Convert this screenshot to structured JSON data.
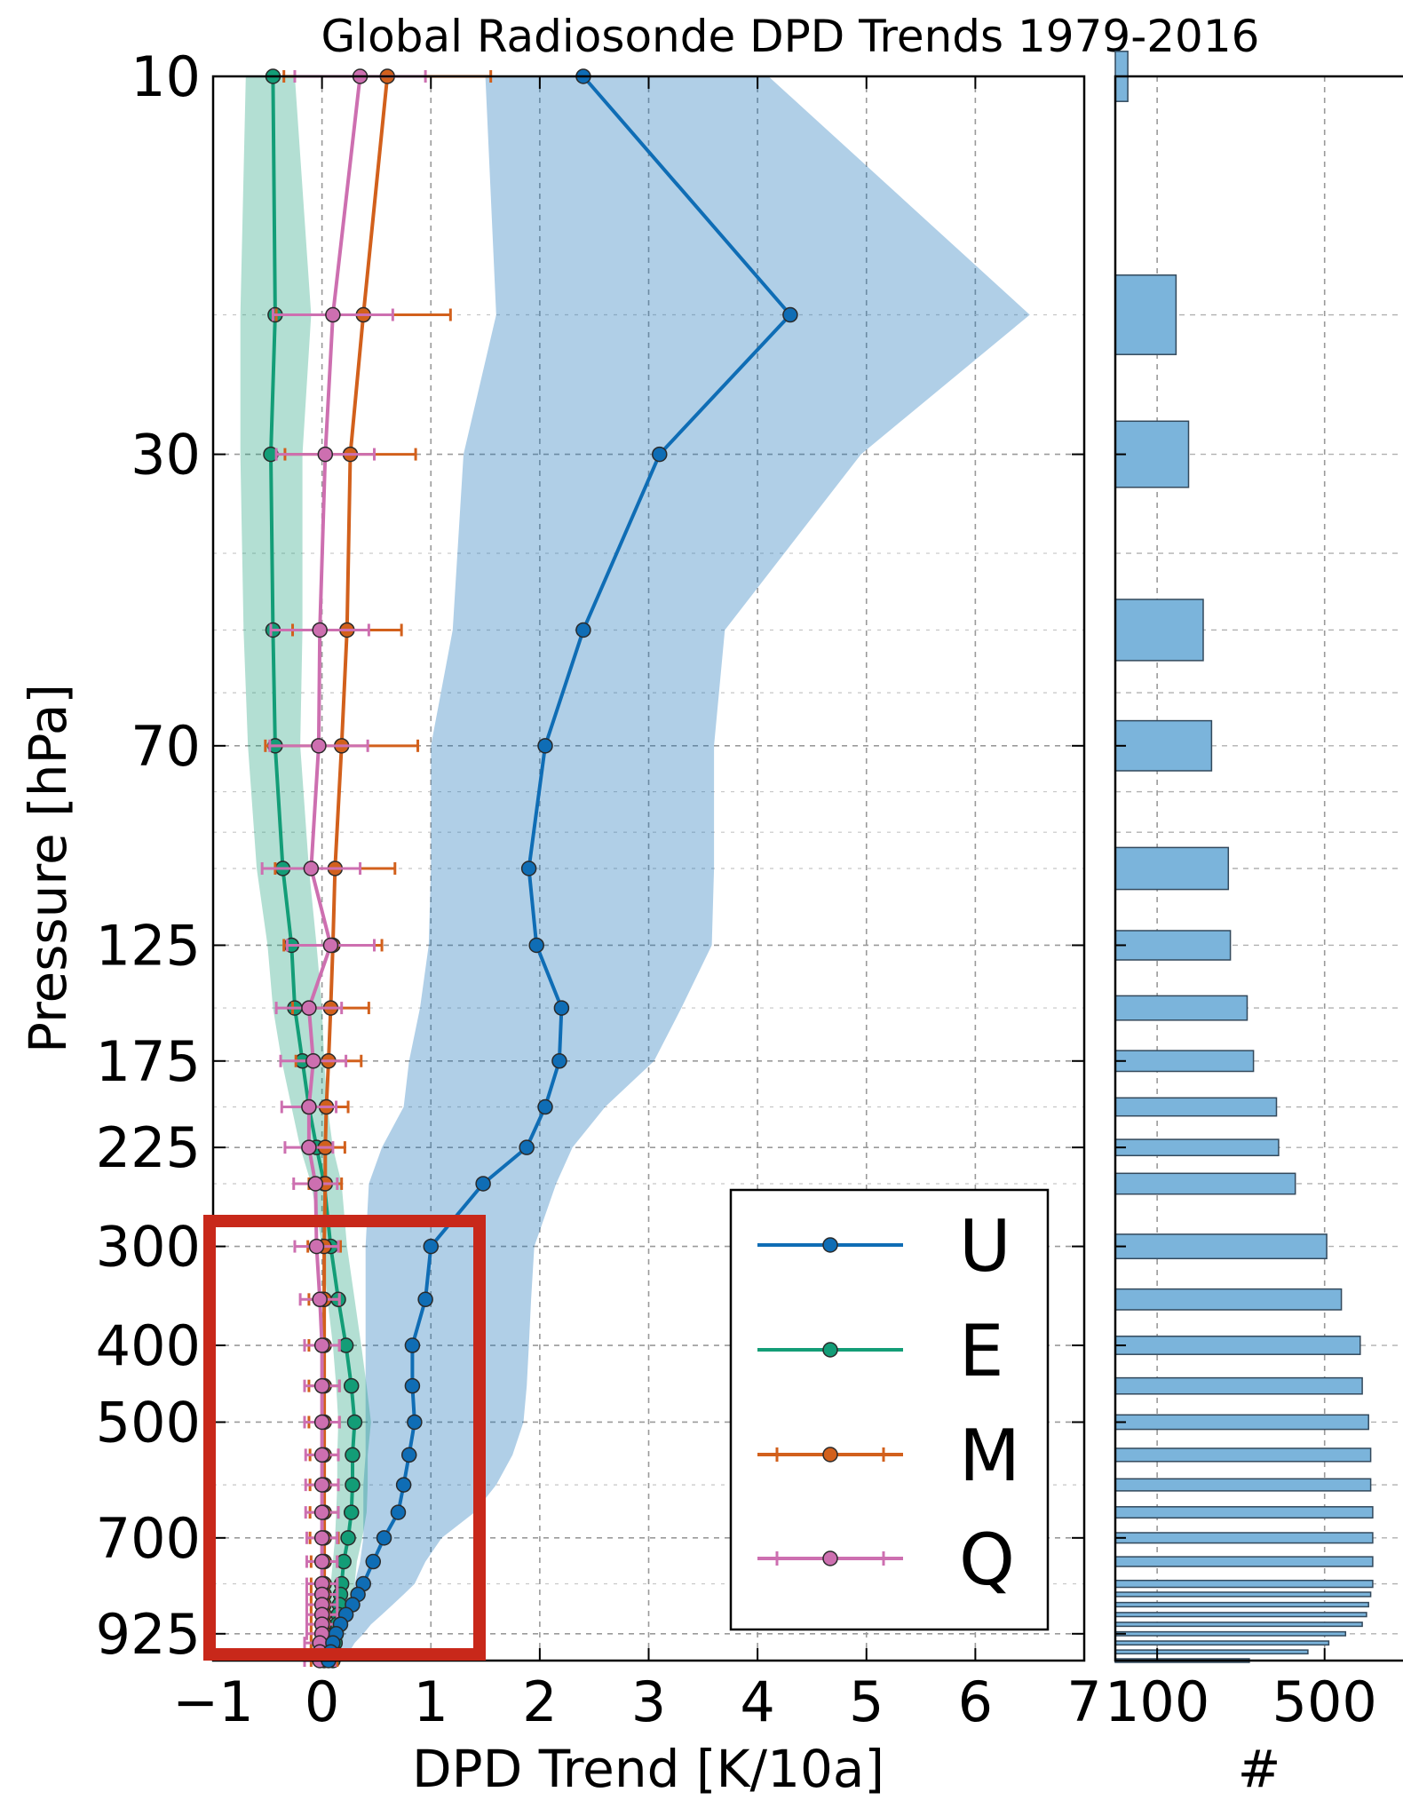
{
  "chart_data": [
    {
      "type": "line",
      "title": "Global Radiosonde DPD Trends 1979-2016",
      "xlabel": "DPD Trend [K/10a]",
      "ylabel": "Pressure [hPa]",
      "xlim": [
        -1,
        7
      ],
      "ylim": [
        1000,
        10
      ],
      "y_scale": "log",
      "grid": true,
      "legend_position": "lower-right",
      "x_ticks": [
        -1,
        0,
        1,
        2,
        3,
        4,
        5,
        6,
        7
      ],
      "y_ticks": [
        10,
        30,
        70,
        125,
        175,
        225,
        300,
        400,
        500,
        700,
        925
      ],
      "pressure_levels": [
        10,
        20,
        30,
        50,
        70,
        100,
        125,
        150,
        175,
        200,
        225,
        250,
        300,
        350,
        400,
        450,
        500,
        550,
        600,
        650,
        700,
        750,
        800,
        825,
        850,
        875,
        900,
        925,
        950,
        975,
        1000
      ],
      "series": [
        {
          "name": "U",
          "color": "#0f6db5",
          "marker": "circle",
          "values": [
            2.4,
            4.3,
            3.1,
            2.4,
            2.05,
            1.9,
            1.97,
            2.2,
            2.18,
            2.05,
            1.88,
            1.48,
            1.0,
            0.95,
            0.83,
            0.83,
            0.85,
            0.8,
            0.75,
            0.7,
            0.57,
            0.47,
            0.38,
            0.33,
            0.28,
            0.22,
            0.17,
            0.13,
            0.1,
            0.08,
            0.06
          ],
          "band_low": [
            1.5,
            1.6,
            1.3,
            1.2,
            1.0,
            1.0,
            0.98,
            0.9,
            0.8,
            0.75,
            0.55,
            0.43,
            0.4,
            0.4,
            0.4,
            0.4,
            0.4,
            0.4,
            0.38,
            0.38,
            0.38,
            0.35,
            0.3,
            0.27,
            0.24,
            0.2,
            0.16,
            0.12,
            0.09,
            0.07,
            0.05
          ],
          "band_high": [
            4.1,
            6.5,
            4.95,
            3.7,
            3.6,
            3.6,
            3.58,
            3.3,
            3.05,
            2.6,
            2.3,
            2.15,
            1.95,
            1.92,
            1.9,
            1.88,
            1.85,
            1.75,
            1.6,
            1.4,
            1.1,
            0.95,
            0.85,
            0.75,
            0.65,
            0.55,
            0.45,
            0.38,
            0.3,
            0.25,
            0.2
          ]
        },
        {
          "name": "E",
          "color": "#139d77",
          "marker": "circle",
          "values": [
            -0.45,
            -0.43,
            -0.47,
            -0.45,
            -0.43,
            -0.36,
            -0.28,
            -0.25,
            -0.18,
            -0.12,
            -0.05,
            0.02,
            0.08,
            0.15,
            0.22,
            0.27,
            0.3,
            0.28,
            0.28,
            0.27,
            0.24,
            0.2,
            0.18,
            0.17,
            0.16,
            0.15,
            0.14,
            0.13,
            0.12,
            0.11,
            0.1
          ],
          "band_low": [
            -0.7,
            -0.75,
            -0.75,
            -0.72,
            -0.68,
            -0.6,
            -0.5,
            -0.45,
            -0.37,
            -0.28,
            -0.2,
            -0.1,
            0.0,
            0.05,
            0.1,
            0.13,
            0.15,
            0.14,
            0.14,
            0.13,
            0.12,
            0.1,
            0.08,
            0.07,
            0.06,
            0.05,
            0.05,
            0.05,
            0.04,
            0.04,
            0.03
          ],
          "band_high": [
            -0.25,
            -0.1,
            -0.18,
            -0.18,
            -0.2,
            -0.12,
            -0.05,
            0.0,
            0.02,
            0.05,
            0.1,
            0.18,
            0.23,
            0.3,
            0.36,
            0.41,
            0.45,
            0.42,
            0.42,
            0.41,
            0.37,
            0.32,
            0.3,
            0.28,
            0.26,
            0.24,
            0.22,
            0.2,
            0.19,
            0.17,
            0.16
          ]
        },
        {
          "name": "M",
          "color": "#d2601c",
          "marker": "circle",
          "values": [
            0.6,
            0.38,
            0.26,
            0.23,
            0.18,
            0.12,
            0.1,
            0.08,
            0.06,
            0.04,
            0.03,
            0.03,
            0.02,
            0.02,
            0.02,
            0.02,
            0.02,
            0.02,
            0.02,
            0.02,
            0.02,
            0.02,
            0.02,
            0.02,
            0.02,
            0.02,
            0.02,
            0.02,
            0.02,
            0.02,
            0.02
          ],
          "err": [
            0.95,
            0.8,
            0.6,
            0.5,
            0.7,
            0.55,
            0.45,
            0.35,
            0.3,
            0.2,
            0.18,
            0.15,
            0.15,
            0.14,
            0.14,
            0.14,
            0.14,
            0.13,
            0.13,
            0.13,
            0.13,
            0.12,
            0.12,
            0.12,
            0.12,
            0.12,
            0.12,
            0.12,
            0.12,
            0.12,
            0.12
          ]
        },
        {
          "name": "Q",
          "color": "#cd6fb0",
          "marker": "circle",
          "values": [
            0.35,
            0.1,
            0.03,
            -0.02,
            -0.03,
            -0.1,
            0.08,
            -0.12,
            -0.08,
            -0.12,
            -0.12,
            -0.06,
            -0.05,
            -0.02,
            0.0,
            0.0,
            0.0,
            0.0,
            0.0,
            0.0,
            0.0,
            0.0,
            0.0,
            0.0,
            0.0,
            0.0,
            0.0,
            0.0,
            -0.02,
            -0.02,
            -0.02
          ],
          "err": [
            0.6,
            0.55,
            0.45,
            0.45,
            0.45,
            0.45,
            0.4,
            0.3,
            0.3,
            0.25,
            0.22,
            0.2,
            0.2,
            0.18,
            0.16,
            0.16,
            0.16,
            0.15,
            0.15,
            0.15,
            0.14,
            0.14,
            0.14,
            0.14,
            0.14,
            0.14,
            0.14,
            0.14,
            0.14,
            0.14,
            0.14
          ]
        }
      ]
    },
    {
      "type": "bar",
      "orientation": "horizontal",
      "xlabel": "#",
      "xlim": [
        0,
        700
      ],
      "x_ticks": [
        100,
        500
      ],
      "color": "#7bb4db",
      "levels": [
        10,
        20,
        30,
        50,
        70,
        100,
        125,
        150,
        175,
        200,
        225,
        250,
        300,
        350,
        400,
        450,
        500,
        550,
        600,
        650,
        700,
        750,
        800,
        825,
        850,
        875,
        900,
        925,
        950,
        975,
        1000
      ],
      "values": [
        30,
        145,
        175,
        210,
        230,
        270,
        275,
        315,
        330,
        385,
        390,
        430,
        505,
        540,
        585,
        590,
        605,
        610,
        610,
        615,
        615,
        615,
        615,
        610,
        605,
        600,
        590,
        550,
        510,
        460,
        320
      ]
    }
  ]
}
